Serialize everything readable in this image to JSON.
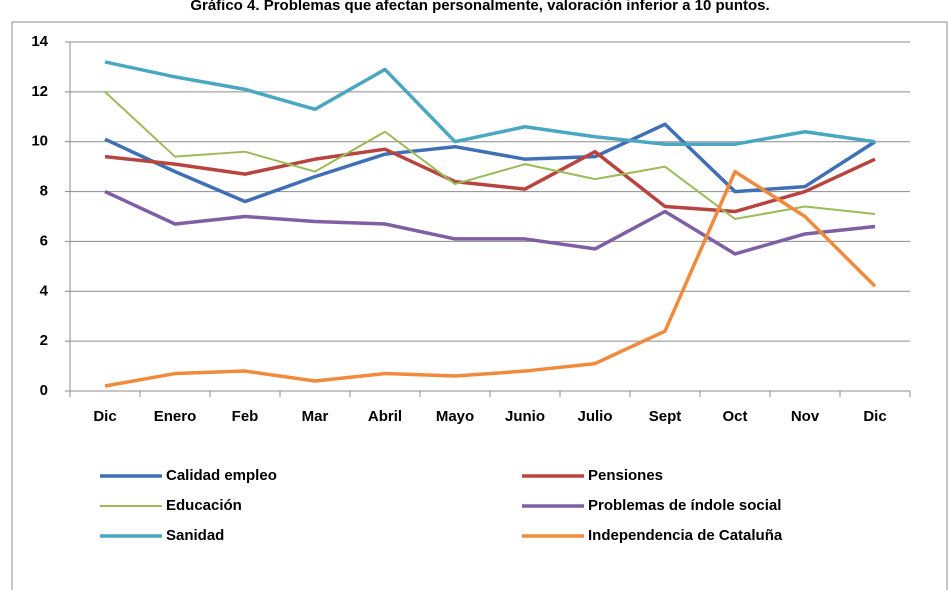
{
  "chart_data": {
    "type": "line",
    "title": "Gráfico 4. Problemas que afectan personalmente, valoración inferior  a  10 puntos.",
    "categories": [
      "Dic",
      "Enero",
      "Feb",
      "Mar",
      "Abril",
      "Mayo",
      "Junio",
      "Julio",
      "Sept",
      "Oct",
      "Nov",
      "Dic"
    ],
    "series": [
      {
        "name": "Calidad empleo",
        "color": "#3f6fb5",
        "values": [
          10.1,
          8.8,
          7.6,
          8.6,
          9.5,
          9.8,
          9.3,
          9.4,
          10.7,
          8.0,
          8.2,
          10.0
        ]
      },
      {
        "name": "Pensiones",
        "color": "#b8443f",
        "values": [
          9.4,
          9.1,
          8.7,
          9.3,
          9.7,
          8.4,
          8.1,
          9.6,
          7.4,
          7.2,
          8.0,
          9.3
        ]
      },
      {
        "name": "Educación",
        "color": "#9bbb59",
        "values": [
          12.0,
          9.4,
          9.6,
          8.8,
          10.4,
          8.3,
          9.1,
          8.5,
          9.0,
          6.9,
          7.4,
          7.1
        ]
      },
      {
        "name": "Problemas de índole social",
        "color": "#7f5fa3",
        "values": [
          8.0,
          6.7,
          7.0,
          6.8,
          6.7,
          6.1,
          6.1,
          5.7,
          7.2,
          5.5,
          6.3,
          6.6
        ]
      },
      {
        "name": "Sanidad",
        "color": "#4aa7c2",
        "values": [
          13.2,
          12.6,
          12.1,
          11.3,
          12.9,
          10.0,
          10.6,
          10.2,
          9.9,
          9.9,
          10.4,
          10.0
        ]
      },
      {
        "name": "Independencia  de Cataluña",
        "color": "#f08a3c",
        "values": [
          0.2,
          0.7,
          0.8,
          0.4,
          0.7,
          0.6,
          0.8,
          1.1,
          2.4,
          8.8,
          7.0,
          4.2
        ]
      }
    ],
    "ylim": [
      0,
      14
    ],
    "yticks": [
      0,
      2,
      4,
      6,
      8,
      10,
      12,
      14
    ],
    "grid": true
  }
}
